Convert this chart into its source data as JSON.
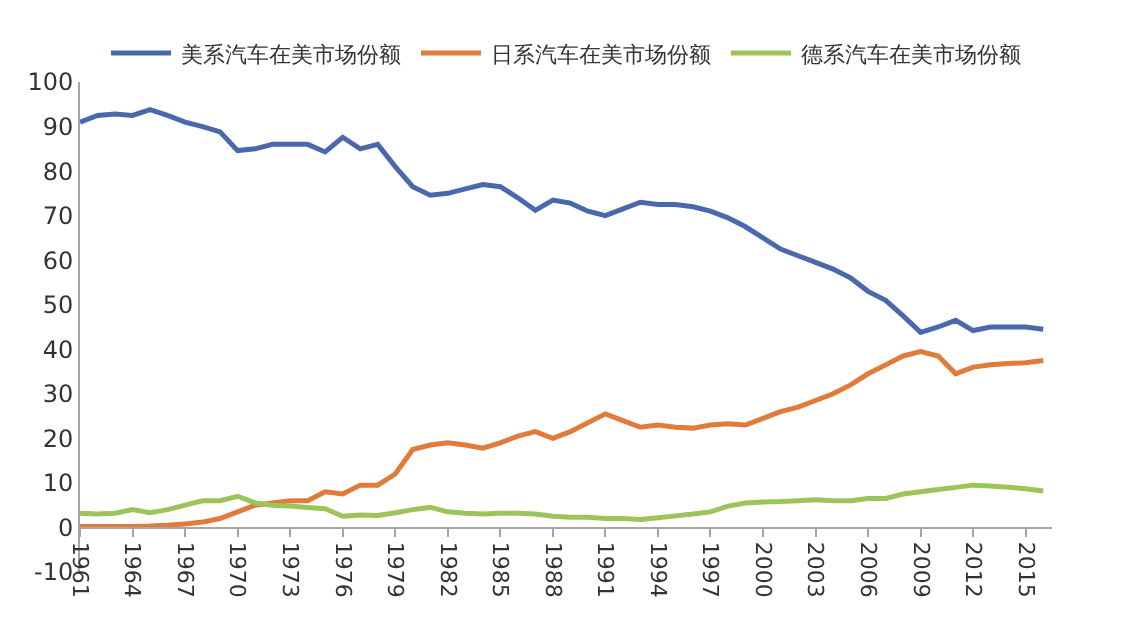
{
  "chart_data": {
    "type": "line",
    "x": [
      1961,
      1962,
      1963,
      1964,
      1965,
      1966,
      1967,
      1968,
      1969,
      1970,
      1971,
      1972,
      1973,
      1974,
      1975,
      1976,
      1977,
      1978,
      1979,
      1980,
      1981,
      1982,
      1983,
      1984,
      1985,
      1986,
      1987,
      1988,
      1989,
      1990,
      1991,
      1992,
      1993,
      1994,
      1995,
      1996,
      1997,
      1998,
      1999,
      2000,
      2001,
      2002,
      2003,
      2004,
      2005,
      2006,
      2007,
      2008,
      2009,
      2010,
      2011,
      2012,
      2013,
      2014,
      2015,
      2016
    ],
    "series": [
      {
        "name": "美系汽车在美市场份额",
        "color": "#4a69ad",
        "values": [
          91,
          92.5,
          92.8,
          92.5,
          93.8,
          92.5,
          91,
          90,
          88.8,
          84.6,
          85,
          86,
          86,
          86,
          84.3,
          87.6,
          85,
          86,
          81,
          76.5,
          74.6,
          75,
          76,
          77,
          76.5,
          74,
          71.2,
          73.5,
          72.8,
          71,
          70,
          71.5,
          73,
          72.5,
          72.5,
          72,
          71,
          69.5,
          67.5,
          65,
          62.5,
          61,
          59.5,
          58,
          56,
          53,
          51,
          47.5,
          43.8,
          45,
          46.5,
          44.2,
          45,
          45,
          45,
          44.5
        ]
      },
      {
        "name": "日系汽车在美市场份额",
        "color": "#e07b39",
        "values": [
          0.2,
          0.2,
          0.2,
          0.2,
          0.3,
          0.5,
          0.8,
          1.2,
          2,
          3.5,
          5,
          5.5,
          6,
          6,
          8,
          7.5,
          9.5,
          9.5,
          12,
          17.5,
          18.5,
          19,
          18.5,
          17.8,
          19,
          20.5,
          21.5,
          20,
          21.5,
          23.5,
          25.5,
          24,
          22.5,
          23,
          22.5,
          22.3,
          23,
          23.3,
          23,
          24.5,
          26,
          27,
          28.5,
          30,
          32,
          34.5,
          36.5,
          38.5,
          39.5,
          38.5,
          34.5,
          36,
          36.5,
          36.8,
          37,
          37.5
        ]
      },
      {
        "name": "德系汽车在美市场份额",
        "color": "#9bc45a",
        "values": [
          3.2,
          3,
          3.2,
          4,
          3.3,
          4,
          5,
          6,
          6,
          7,
          5.5,
          5,
          4.8,
          4.5,
          4.2,
          2.5,
          2.8,
          2.7,
          3.3,
          4,
          4.5,
          3.5,
          3.2,
          3,
          3.2,
          3.2,
          3,
          2.5,
          2.3,
          2.3,
          2,
          2,
          1.8,
          2.2,
          2.6,
          3,
          3.5,
          4.8,
          5.5,
          5.7,
          5.8,
          6,
          6.2,
          6,
          6,
          6.5,
          6.5,
          7.5,
          8,
          8.5,
          9,
          9.5,
          9.3,
          9,
          8.7,
          8.2
        ]
      }
    ],
    "xlim": [
      1961,
      2016.5
    ],
    "xticks": [
      1961,
      1964,
      1967,
      1970,
      1973,
      1976,
      1979,
      1982,
      1985,
      1988,
      1991,
      1994,
      1997,
      2000,
      2003,
      2006,
      2009,
      2012,
      2015
    ],
    "ylim": [
      -10,
      100
    ],
    "yticks": [
      -10,
      0,
      10,
      20,
      30,
      40,
      50,
      60,
      70,
      80,
      90,
      100
    ],
    "legend": "top",
    "marker": "none",
    "line_style": "solid"
  }
}
